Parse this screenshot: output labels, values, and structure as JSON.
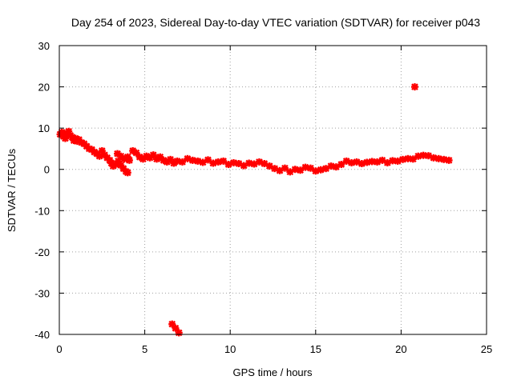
{
  "chart_data": {
    "type": "scatter",
    "title": "Day 254 of 2023, Sidereal Day-to-day VTEC variation (SDTVAR) for receiver p043",
    "xlabel": "GPS time / hours",
    "ylabel": "SDTVAR / TECUs",
    "xlim": [
      0,
      25
    ],
    "ylim": [
      -40,
      30
    ],
    "xticks": [
      0,
      5,
      10,
      15,
      20,
      25
    ],
    "yticks": [
      -40,
      -30,
      -20,
      -10,
      0,
      10,
      20,
      30
    ],
    "grid": true,
    "marker_color": "#ff0000",
    "series": [
      {
        "name": "SDTVAR",
        "points": [
          [
            0.05,
            8.5
          ],
          [
            0.15,
            9.0
          ],
          [
            0.25,
            8.0
          ],
          [
            0.35,
            7.5
          ],
          [
            0.45,
            8.8
          ],
          [
            0.55,
            9.2
          ],
          [
            0.65,
            8.2
          ],
          [
            0.75,
            7.8
          ],
          [
            0.85,
            7.0
          ],
          [
            0.95,
            7.5
          ],
          [
            1.05,
            6.8
          ],
          [
            1.15,
            7.2
          ],
          [
            1.3,
            6.5
          ],
          [
            1.45,
            6.2
          ],
          [
            1.6,
            5.6
          ],
          [
            1.75,
            5.0
          ],
          [
            1.9,
            4.8
          ],
          [
            2.05,
            4.2
          ],
          [
            2.2,
            3.8
          ],
          [
            2.35,
            3.2
          ],
          [
            2.5,
            4.5
          ],
          [
            2.65,
            3.5
          ],
          [
            2.8,
            2.8
          ],
          [
            2.95,
            2.2
          ],
          [
            3.05,
            1.5
          ],
          [
            3.15,
            0.8
          ],
          [
            3.3,
            1.2
          ],
          [
            3.45,
            2.0
          ],
          [
            3.6,
            1.0
          ],
          [
            3.75,
            0.2
          ],
          [
            3.9,
            -0.5
          ],
          [
            4.0,
            -0.8
          ],
          [
            3.4,
            3.8
          ],
          [
            3.6,
            3.2
          ],
          [
            3.8,
            2.5
          ],
          [
            4.0,
            3.0
          ],
          [
            4.1,
            2.2
          ],
          [
            4.3,
            4.5
          ],
          [
            4.5,
            4.0
          ],
          [
            4.7,
            3.0
          ],
          [
            4.9,
            2.5
          ],
          [
            5.1,
            3.2
          ],
          [
            5.3,
            2.8
          ],
          [
            5.5,
            3.5
          ],
          [
            5.7,
            2.5
          ],
          [
            5.9,
            3.0
          ],
          [
            6.1,
            2.2
          ],
          [
            6.3,
            1.8
          ],
          [
            6.5,
            2.4
          ],
          [
            6.7,
            1.5
          ],
          [
            6.9,
            2.0
          ],
          [
            7.2,
            1.8
          ],
          [
            7.5,
            2.6
          ],
          [
            7.8,
            2.2
          ],
          [
            8.1,
            2.0
          ],
          [
            8.4,
            1.7
          ],
          [
            8.7,
            2.3
          ],
          [
            9.0,
            1.5
          ],
          [
            9.3,
            1.8
          ],
          [
            9.6,
            2.0
          ],
          [
            9.9,
            1.2
          ],
          [
            10.2,
            1.6
          ],
          [
            10.5,
            1.4
          ],
          [
            10.8,
            0.9
          ],
          [
            11.1,
            1.5
          ],
          [
            11.4,
            1.3
          ],
          [
            11.7,
            1.8
          ],
          [
            12.0,
            1.4
          ],
          [
            12.3,
            0.8
          ],
          [
            12.6,
            0.2
          ],
          [
            12.9,
            -0.3
          ],
          [
            13.2,
            0.3
          ],
          [
            13.5,
            -0.6
          ],
          [
            13.8,
            0.0
          ],
          [
            14.1,
            -0.2
          ],
          [
            14.4,
            0.5
          ],
          [
            14.7,
            0.3
          ],
          [
            15.0,
            -0.4
          ],
          [
            15.3,
            -0.1
          ],
          [
            15.6,
            0.2
          ],
          [
            15.9,
            0.8
          ],
          [
            16.2,
            0.6
          ],
          [
            16.5,
            1.2
          ],
          [
            16.8,
            2.0
          ],
          [
            17.1,
            1.6
          ],
          [
            17.4,
            1.8
          ],
          [
            17.7,
            1.4
          ],
          [
            18.0,
            1.7
          ],
          [
            18.3,
            1.9
          ],
          [
            18.6,
            1.8
          ],
          [
            18.9,
            2.2
          ],
          [
            19.2,
            1.6
          ],
          [
            19.5,
            2.1
          ],
          [
            19.8,
            2.0
          ],
          [
            20.1,
            2.4
          ],
          [
            20.4,
            2.6
          ],
          [
            20.7,
            2.5
          ],
          [
            21.0,
            3.2
          ],
          [
            21.3,
            3.4
          ],
          [
            21.6,
            3.3
          ],
          [
            21.9,
            2.8
          ],
          [
            22.2,
            2.6
          ],
          [
            22.5,
            2.4
          ],
          [
            22.8,
            2.2
          ],
          [
            20.8,
            20.0
          ],
          [
            6.6,
            -37.5
          ],
          [
            6.8,
            -38.5
          ],
          [
            7.0,
            -39.6
          ]
        ]
      }
    ]
  }
}
